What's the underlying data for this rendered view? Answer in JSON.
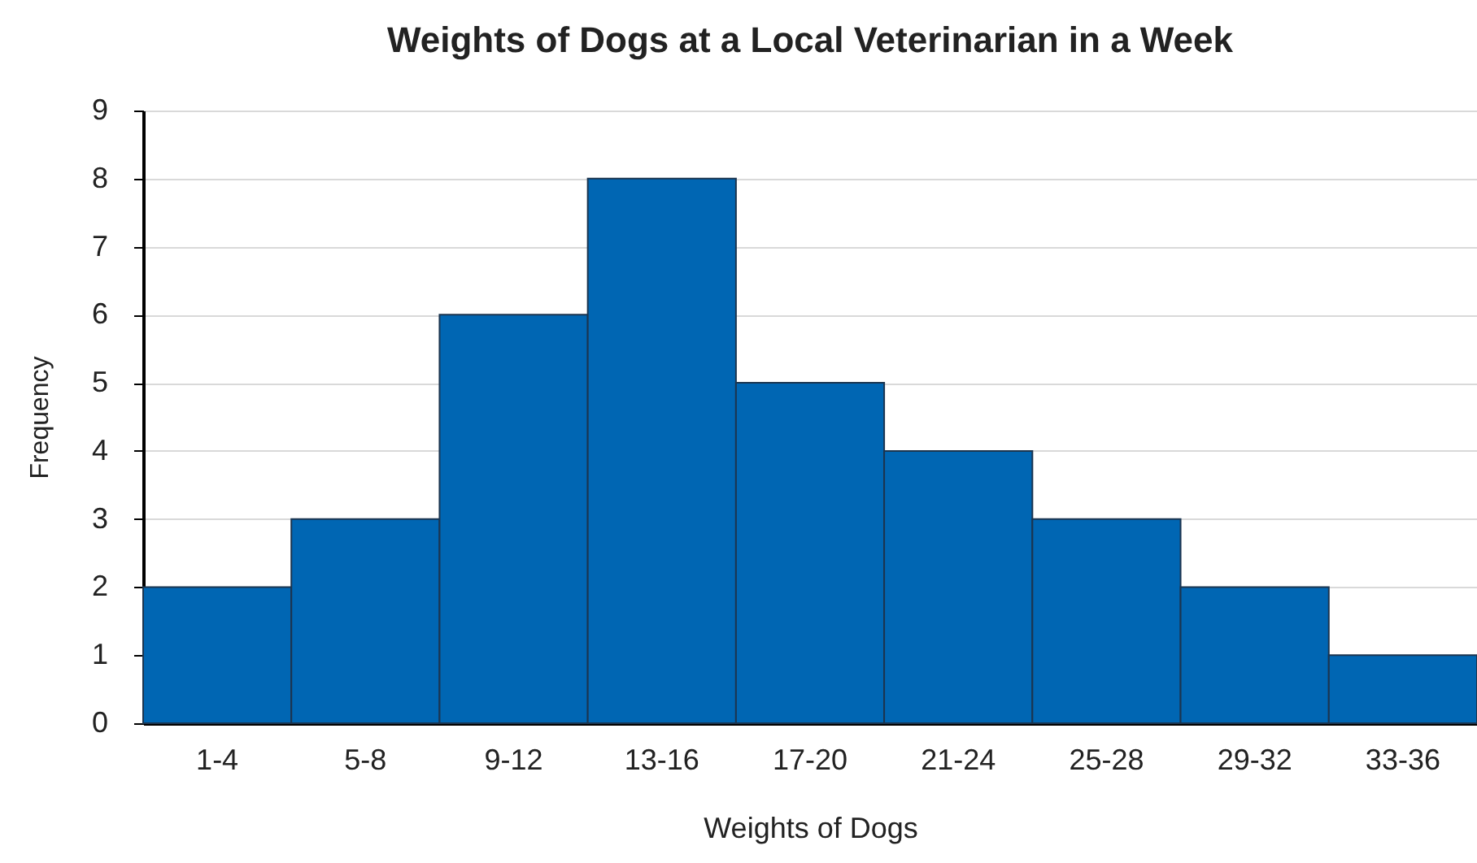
{
  "chart_data": {
    "type": "bar",
    "title": "Weights of Dogs at a Local Veterinarian in a Week",
    "xlabel": "Weights of Dogs",
    "ylabel": "Frequency",
    "categories": [
      "1-4",
      "5-8",
      "9-12",
      "13-16",
      "17-20",
      "21-24",
      "25-28",
      "29-32",
      "33-36"
    ],
    "values": [
      2,
      3,
      6,
      8,
      5,
      4,
      3,
      2,
      1
    ],
    "color": "#0066b3",
    "ylim": [
      0,
      9
    ],
    "yticks": [
      0,
      1,
      2,
      3,
      4,
      5,
      6,
      7,
      8,
      9
    ],
    "grid": "y"
  }
}
